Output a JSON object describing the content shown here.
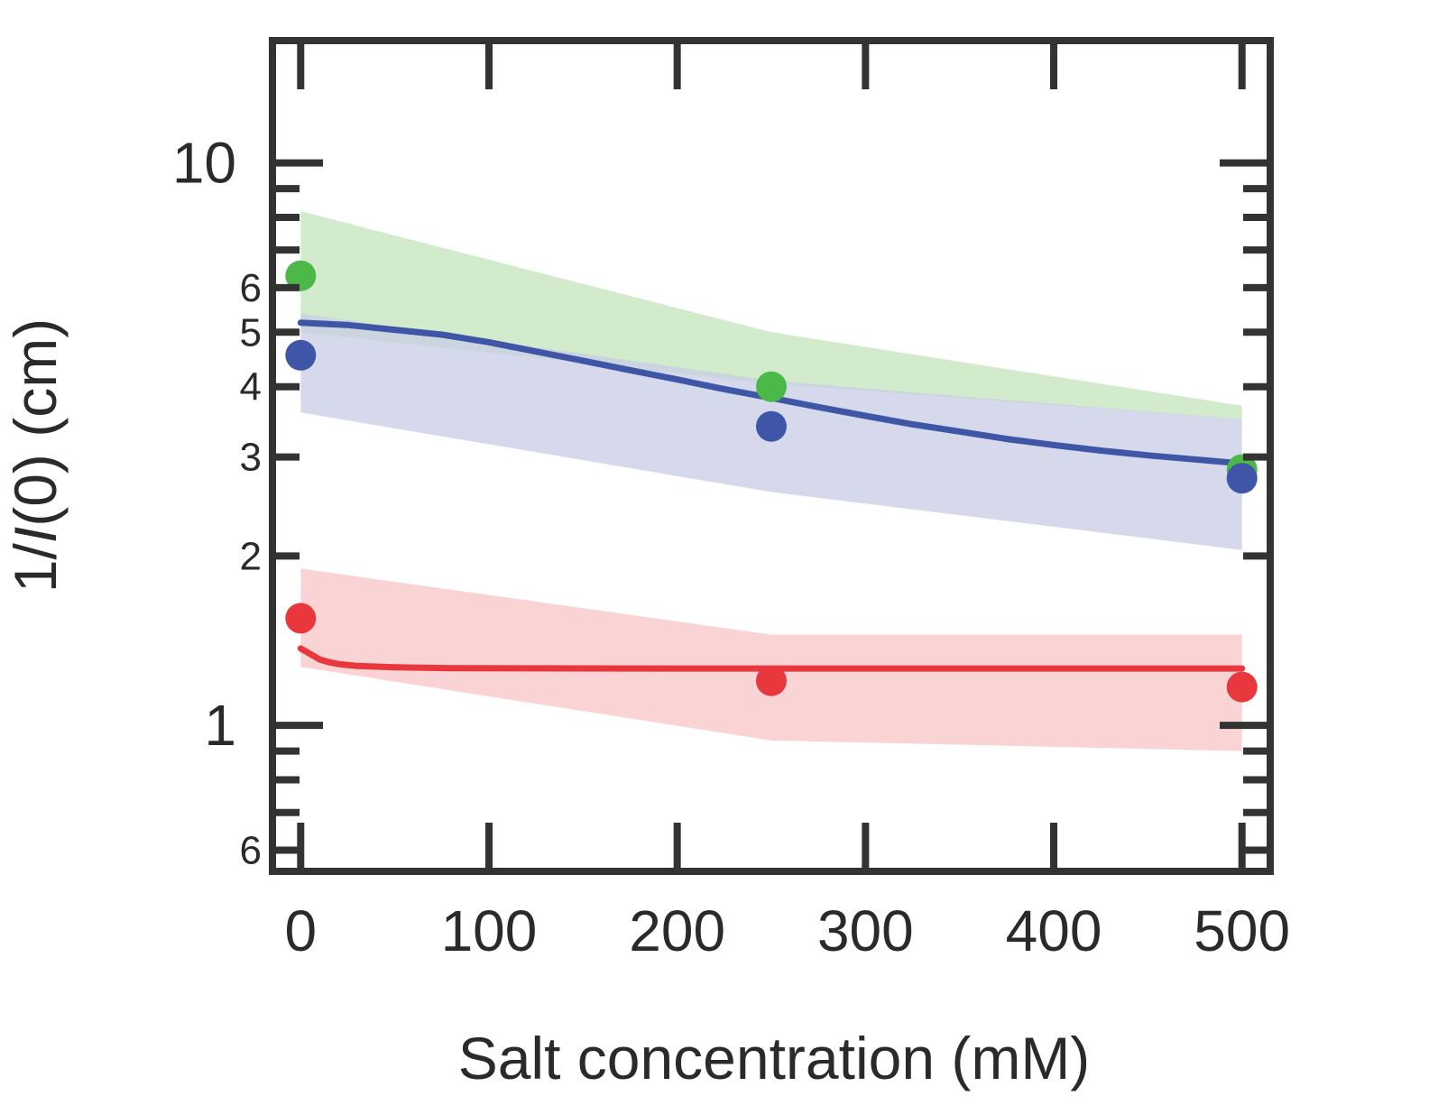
{
  "chart_data": {
    "type": "line",
    "title": "",
    "xlabel": "Salt concentration (mM)",
    "ylabel_prefix": "1/",
    "ylabel_italic": "I",
    "ylabel_suffix": "(0) (cm)",
    "xlim": [
      -15,
      515
    ],
    "ylim": [
      0.55,
      16.5
    ],
    "yscale": "log",
    "x_ticks": [
      0,
      100,
      200,
      300,
      400,
      500
    ],
    "x_tick_labels": [
      "0",
      "100",
      "200",
      "300",
      "400",
      "500"
    ],
    "y_major_ticks": [
      1,
      10
    ],
    "y_major_labels": [
      "1",
      "10"
    ],
    "y_minor_ticks": [
      0.6,
      0.7,
      0.8,
      0.9,
      2,
      3,
      4,
      5,
      6,
      7,
      8,
      9
    ],
    "y_minor_labeled": [
      0.6,
      2,
      3,
      4,
      5,
      6
    ],
    "y_minor_labels": [
      "6",
      "2",
      "3",
      "4",
      "5",
      "6"
    ],
    "series": [
      {
        "name": "green",
        "color": "#4cb848",
        "band_color": "#d2ebcc",
        "points": {
          "x": [
            0,
            250,
            500
          ],
          "y": [
            6.3,
            4.0,
            2.85
          ]
        },
        "band": {
          "x": [
            0,
            250,
            500
          ],
          "lower": [
            5.0,
            4.05,
            3.5
          ],
          "upper": [
            8.2,
            5.0,
            3.7
          ]
        }
      },
      {
        "name": "blue",
        "color": "#3f55a6",
        "band_color": "#c9cee5",
        "points": {
          "x": [
            0,
            250,
            500
          ],
          "y": [
            4.55,
            3.4,
            2.75
          ]
        },
        "band": {
          "x": [
            0,
            250,
            500
          ],
          "lower": [
            3.6,
            2.6,
            2.05
          ],
          "upper": [
            5.4,
            4.1,
            3.5
          ]
        },
        "fit": {
          "x": [
            0,
            25,
            50,
            75,
            100,
            125,
            150,
            175,
            200,
            225,
            250,
            275,
            300,
            325,
            350,
            375,
            400,
            425,
            450,
            475,
            500
          ],
          "y": [
            5.2,
            5.15,
            5.05,
            4.95,
            4.8,
            4.62,
            4.45,
            4.28,
            4.12,
            3.96,
            3.82,
            3.68,
            3.55,
            3.43,
            3.33,
            3.23,
            3.15,
            3.08,
            3.02,
            2.97,
            2.92
          ]
        }
      },
      {
        "name": "red",
        "color": "#e8383d",
        "band_color": "#f8c8c9",
        "points": {
          "x": [
            0,
            250,
            500
          ],
          "y": [
            1.55,
            1.2,
            1.17
          ]
        },
        "band": {
          "x": [
            0,
            250,
            500
          ],
          "lower": [
            1.27,
            0.94,
            0.9
          ],
          "upper": [
            1.9,
            1.45,
            1.45
          ]
        },
        "fit": {
          "x": [
            0,
            5,
            10,
            15,
            20,
            30,
            50,
            80,
            120,
            200,
            300,
            400,
            500
          ],
          "y": [
            1.37,
            1.34,
            1.31,
            1.295,
            1.285,
            1.275,
            1.268,
            1.264,
            1.263,
            1.262,
            1.262,
            1.262,
            1.262
          ]
        }
      }
    ]
  }
}
